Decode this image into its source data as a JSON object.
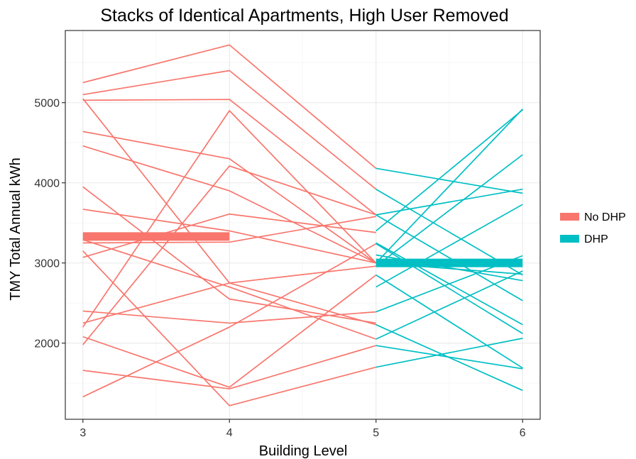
{
  "chart_data": {
    "type": "line",
    "title": "Stacks of Identical Apartments, High User Removed",
    "xlabel": "Building Level",
    "ylabel": "TMY Total Annual kWh",
    "xlim": [
      2.88,
      6.12
    ],
    "ylim": [
      1050,
      5900
    ],
    "x_ticks": [
      3,
      4,
      5,
      6
    ],
    "y_ticks": [
      2000,
      3000,
      4000,
      5000
    ],
    "x_tick_labels": [
      "3",
      "4",
      "5",
      "6"
    ],
    "y_tick_labels": [
      "2000",
      "3000",
      "4000",
      "5000"
    ],
    "grid": true,
    "legend": {
      "position": "right",
      "entries": [
        {
          "label": "No DHP",
          "color": "#F8766D"
        },
        {
          "label": "DHP",
          "color": "#00BFC4"
        }
      ]
    },
    "groups": [
      {
        "name": "No DHP",
        "color": "#F8766D",
        "mean": {
          "x": [
            3,
            4
          ],
          "y": [
            3330,
            3330
          ]
        },
        "lines": [
          {
            "x": [
              3,
              4,
              5
            ],
            "y": [
              5250,
              5720,
              4180
            ]
          },
          {
            "x": [
              3,
              4,
              5
            ],
            "y": [
              5100,
              5400,
              3920
            ]
          },
          {
            "x": [
              3,
              4,
              5
            ],
            "y": [
              5030,
              5040,
              3600
            ]
          },
          {
            "x": [
              3,
              4,
              5
            ],
            "y": [
              5050,
              2750,
              2230
            ]
          },
          {
            "x": [
              3,
              4,
              5
            ],
            "y": [
              4640,
              4300,
              3000
            ]
          },
          {
            "x": [
              3,
              4,
              5
            ],
            "y": [
              4460,
              3900,
              3000
            ]
          },
          {
            "x": [
              3,
              4,
              5
            ],
            "y": [
              3950,
              2550,
              2250
            ]
          },
          {
            "x": [
              3,
              4,
              5
            ],
            "y": [
              3670,
              3400,
              3000
            ]
          },
          {
            "x": [
              3,
              4,
              5
            ],
            "y": [
              3290,
              2700,
              2050
            ]
          },
          {
            "x": [
              3,
              4,
              5
            ],
            "y": [
              3250,
              3260,
              3580
            ]
          },
          {
            "x": [
              3,
              4,
              5
            ],
            "y": [
              3070,
              3610,
              3380
            ]
          },
          {
            "x": [
              3,
              4,
              5
            ],
            "y": [
              2400,
              2250,
              2390
            ]
          },
          {
            "x": [
              3,
              4,
              5
            ],
            "y": [
              2250,
              2750,
              2960
            ]
          },
          {
            "x": [
              3,
              4,
              5
            ],
            "y": [
              2200,
              4900,
              3000
            ]
          },
          {
            "x": [
              3,
              4,
              5
            ],
            "y": [
              1980,
              4210,
              3600
            ]
          },
          {
            "x": [
              3,
              4,
              5
            ],
            "y": [
              2080,
              1450,
              2850
            ]
          },
          {
            "x": [
              3,
              4,
              5
            ],
            "y": [
              1660,
              1430,
              1970
            ]
          },
          {
            "x": [
              3,
              4,
              5
            ],
            "y": [
              1330,
              2200,
              3240
            ]
          },
          {
            "x": [
              3,
              4,
              5
            ],
            "y": [
              3150,
              1220,
              1700
            ]
          }
        ]
      },
      {
        "name": "DHP",
        "color": "#00BFC4",
        "mean": {
          "x": [
            5,
            6
          ],
          "y": [
            3000,
            3000
          ]
        },
        "lines": [
          {
            "x": [
              5,
              6
            ],
            "y": [
              4180,
              3870
            ]
          },
          {
            "x": [
              5,
              6
            ],
            "y": [
              3920,
              2850
            ]
          },
          {
            "x": [
              5,
              6
            ],
            "y": [
              3600,
              3920
            ]
          },
          {
            "x": [
              5,
              6
            ],
            "y": [
              3400,
              4910
            ]
          },
          {
            "x": [
              5,
              6
            ],
            "y": [
              3600,
              2530
            ]
          },
          {
            "x": [
              5,
              6
            ],
            "y": [
              3000,
              4920
            ]
          },
          {
            "x": [
              5,
              6
            ],
            "y": [
              3250,
              2230
            ]
          },
          {
            "x": [
              5,
              6
            ],
            "y": [
              3000,
              2860
            ]
          },
          {
            "x": [
              5,
              6
            ],
            "y": [
              2390,
              3090
            ]
          },
          {
            "x": [
              5,
              6
            ],
            "y": [
              2960,
              4350
            ]
          },
          {
            "x": [
              5,
              6
            ],
            "y": [
              2700,
              3730
            ]
          },
          {
            "x": [
              5,
              6
            ],
            "y": [
              3100,
              2780
            ]
          },
          {
            "x": [
              5,
              6
            ],
            "y": [
              2850,
              1690
            ]
          },
          {
            "x": [
              5,
              6
            ],
            "y": [
              2230,
              1410
            ]
          },
          {
            "x": [
              5,
              6
            ],
            "y": [
              2050,
              2900
            ]
          },
          {
            "x": [
              5,
              6
            ],
            "y": [
              1970,
              1680
            ]
          },
          {
            "x": [
              5,
              6
            ],
            "y": [
              1700,
              2060
            ]
          },
          {
            "x": [
              5,
              6
            ],
            "y": [
              3240,
              2120
            ]
          }
        ]
      }
    ]
  }
}
